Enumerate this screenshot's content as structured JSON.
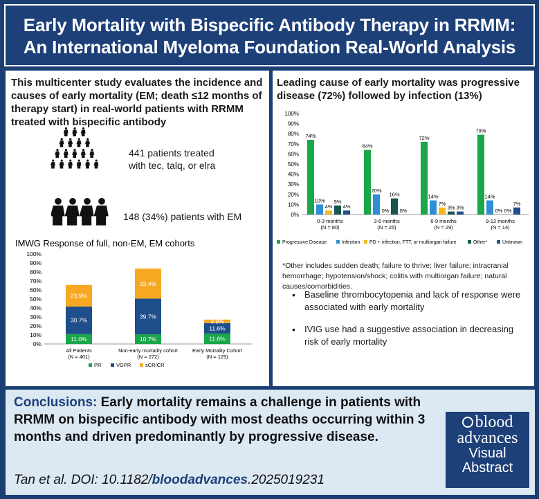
{
  "header": {
    "title_line1": "Early Mortality with Bispecific Antibody Therapy in RRMM:",
    "title_line2": "An International Myeloma Foundation Real-World Analysis"
  },
  "left_panel": {
    "intro": "This multicenter study evaluates the incidence and causes of early mortality (EM; death ≤12 months of therapy start) in real-world patients with RRMM treated with bispecific antibody",
    "stat1_line1": "441 patients treated",
    "stat1_line2": "with tec, talq, or elra",
    "stat2": "148 (34%) patients with EM"
  },
  "right_panel": {
    "title": "Leading cause of early mortality was progressive disease (72%) followed by infection (13%)",
    "footnote": "*Other includes sudden death; failure to thrive; liver failure; intracranial hemorrhage; hypotension/shock; colitis with multiorgan failure; natural causes/comorbidities.",
    "bullets": [
      "Baseline thrombocytopenia and lack of response were associated with early mortality",
      "IVIG use had a suggestive association in decreasing risk of early mortality"
    ]
  },
  "conclusions": {
    "label": "Conclusions:",
    "text": "Early mortality remains a challenge in patients with RRMM on bispecific antibody with most deaths occurring within 3 months and driven predominantly by progressive disease.",
    "citation_prefix": "Tan et al. DOI: 10.1182/",
    "citation_journal": "bloodadvances",
    "citation_suffix": ".2025019231"
  },
  "badge": {
    "line1": "blood",
    "line2": "advances",
    "line3": "Visual",
    "line4": "Abstract"
  },
  "colors": {
    "header_bg": "#1d4079",
    "progressive_disease": "#1aa64a",
    "infection": "#2f8fd6",
    "pd_infection": "#f5b81c",
    "other": "#17574f",
    "unknown": "#1f4e8c",
    "pr": "#1aa64a",
    "vgpr": "#1f4e8c",
    "scr": "#f7a823"
  },
  "chart_data": [
    {
      "type": "bar",
      "title": "IMWG Response of full, non-EM, EM cohorts",
      "stacked": true,
      "categories": [
        "All Patients",
        "Non-early mortality cohort",
        "Early Mortality Cohort"
      ],
      "category_sublabels": [
        "(N = 401)",
        "(N = 272)",
        "(N = 129)"
      ],
      "series": [
        {
          "name": "PR",
          "values": [
            11.0,
            10.7,
            11.6
          ],
          "labels": [
            "11.0%",
            "10.7%",
            "11.6%"
          ]
        },
        {
          "name": "VGPR",
          "values": [
            30.7,
            39.7,
            11.6
          ],
          "labels": [
            "30.7%",
            "39.7%",
            "11.6%"
          ]
        },
        {
          "name": "sCR/CR",
          "values": [
            23.9,
            33.4,
            3.9
          ],
          "labels": [
            "23.9%",
            "33.4%",
            "3.9%"
          ]
        }
      ],
      "yticks": [
        "0%",
        "10%",
        "20%",
        "30%",
        "40%",
        "50%",
        "60%",
        "70%",
        "80%",
        "90%",
        "100%"
      ],
      "ylim": [
        0,
        100
      ],
      "legend": "bottom"
    },
    {
      "type": "bar",
      "title": "",
      "stacked": false,
      "categories": [
        "0-3 months",
        "3-6 months",
        "6-9 months",
        "9-12 months"
      ],
      "category_sublabels": [
        "(N = 80)",
        "(N = 25)",
        "(N = 29)",
        "(N = 14)"
      ],
      "series": [
        {
          "name": "Progressive Disease",
          "values": [
            74,
            64,
            72,
            79
          ],
          "labels": [
            "74%",
            "64%",
            "72%",
            "79%"
          ]
        },
        {
          "name": "Infection",
          "values": [
            10,
            20,
            14,
            14
          ],
          "labels": [
            "10%",
            "20%",
            "14%",
            "14%"
          ]
        },
        {
          "name": "PD + infection, FTT, or multiorgan failure",
          "values": [
            4,
            0,
            7,
            0
          ],
          "labels": [
            "4%",
            "0%",
            "7%",
            "0%"
          ]
        },
        {
          "name": "Other*",
          "values": [
            9,
            16,
            3,
            0
          ],
          "labels": [
            "9%",
            "16%",
            "3%",
            "0%"
          ]
        },
        {
          "name": "Unknown",
          "values": [
            4,
            0,
            3,
            7
          ],
          "labels": [
            "4%",
            "0%",
            "3%",
            "7%"
          ]
        }
      ],
      "yticks": [
        "0%",
        "10%",
        "20%",
        "30%",
        "40%",
        "50%",
        "60%",
        "70%",
        "80%",
        "90%",
        "100%"
      ],
      "ylim": [
        0,
        100
      ],
      "legend": "bottom"
    }
  ]
}
